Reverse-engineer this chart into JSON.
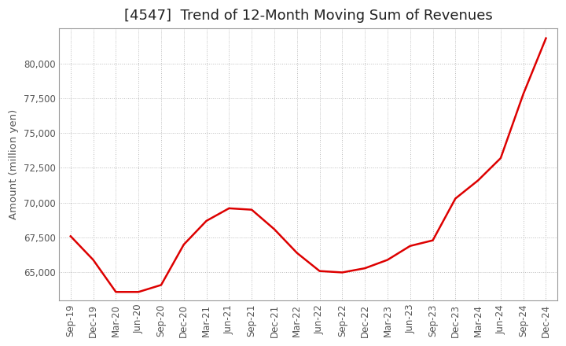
{
  "title": "[4547]  Trend of 12-Month Moving Sum of Revenues",
  "ylabel": "Amount (million yen)",
  "line_color": "#dd0000",
  "background_color": "#ffffff",
  "plot_bg_color": "#ffffff",
  "grid_color": "#bbbbbb",
  "tick_labels": [
    "Sep-19",
    "Dec-19",
    "Mar-20",
    "Jun-20",
    "Sep-20",
    "Dec-20",
    "Mar-21",
    "Jun-21",
    "Sep-21",
    "Dec-21",
    "Mar-22",
    "Jun-22",
    "Sep-22",
    "Dec-22",
    "Mar-23",
    "Jun-23",
    "Sep-23",
    "Dec-23",
    "Mar-24",
    "Jun-24",
    "Sep-24",
    "Dec-24"
  ],
  "values": [
    67600,
    65900,
    63600,
    63600,
    64100,
    67000,
    68700,
    69600,
    69500,
    68100,
    66400,
    65100,
    65000,
    65300,
    65900,
    66900,
    67300,
    70300,
    71600,
    73200,
    77800,
    81800
  ],
  "ylim": [
    63000,
    82500
  ],
  "yticks": [
    65000,
    67500,
    70000,
    72500,
    75000,
    77500,
    80000
  ],
  "title_fontsize": 13,
  "axis_fontsize": 9.5,
  "tick_fontsize": 8.5,
  "line_width": 1.8,
  "title_color": "#222222",
  "label_color": "#555555"
}
